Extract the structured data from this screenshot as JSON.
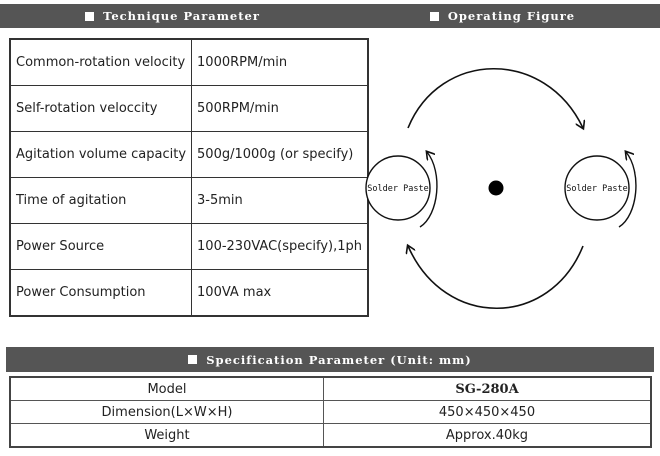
{
  "banners": {
    "technique": "Technique Parameter",
    "operating": "Operating Figure",
    "specification": "Specification Parameter (Unit: mm)"
  },
  "technique_rows": [
    {
      "key": "Common-rotation velocity",
      "value": "1000RPM/min"
    },
    {
      "key": "Self-rotation veloccity",
      "value": "500RPM/min"
    },
    {
      "key": "Agitation volume capacity",
      "value": "500g/1000g (or specify)"
    },
    {
      "key": "Time of agitation",
      "value": "3-5min"
    },
    {
      "key": "Power Source",
      "value": "100-230VAC(specify),1ph"
    },
    {
      "key": "Power Consumption",
      "value": "100VA max"
    }
  ],
  "figure": {
    "left_label": "Solder Paste",
    "right_label": "Solder Paste"
  },
  "spec_rows": [
    {
      "key": "Model",
      "value": "SG-280A"
    },
    {
      "key": "Dimension(L×W×H)",
      "value": "450×450×450"
    },
    {
      "key": "Weight",
      "value": "Approx.40kg"
    }
  ],
  "colors": {
    "banner_bg": "#555555",
    "border": "#333333"
  }
}
